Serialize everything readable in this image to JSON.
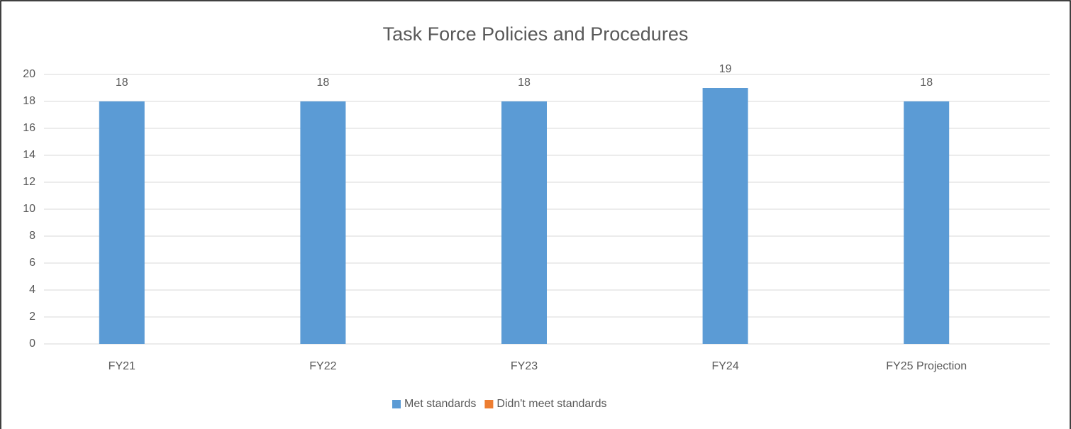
{
  "chart_data": {
    "type": "bar",
    "title": "Task Force Policies and Procedures",
    "categories": [
      "FY21",
      "FY22",
      "FY23",
      "FY24",
      "FY25 Projection"
    ],
    "series": [
      {
        "name": "Met standards",
        "color": "#5b9bd5",
        "values": [
          18,
          18,
          18,
          19,
          18
        ]
      },
      {
        "name": "Didn't meet standards",
        "color": "#ed7d31",
        "values": [
          null,
          null,
          null,
          null,
          null
        ]
      }
    ],
    "ylim": [
      0,
      20
    ],
    "yticks": [
      0,
      2,
      4,
      6,
      8,
      10,
      12,
      14,
      16,
      18,
      20
    ],
    "grid": true,
    "legend": "bottom"
  }
}
